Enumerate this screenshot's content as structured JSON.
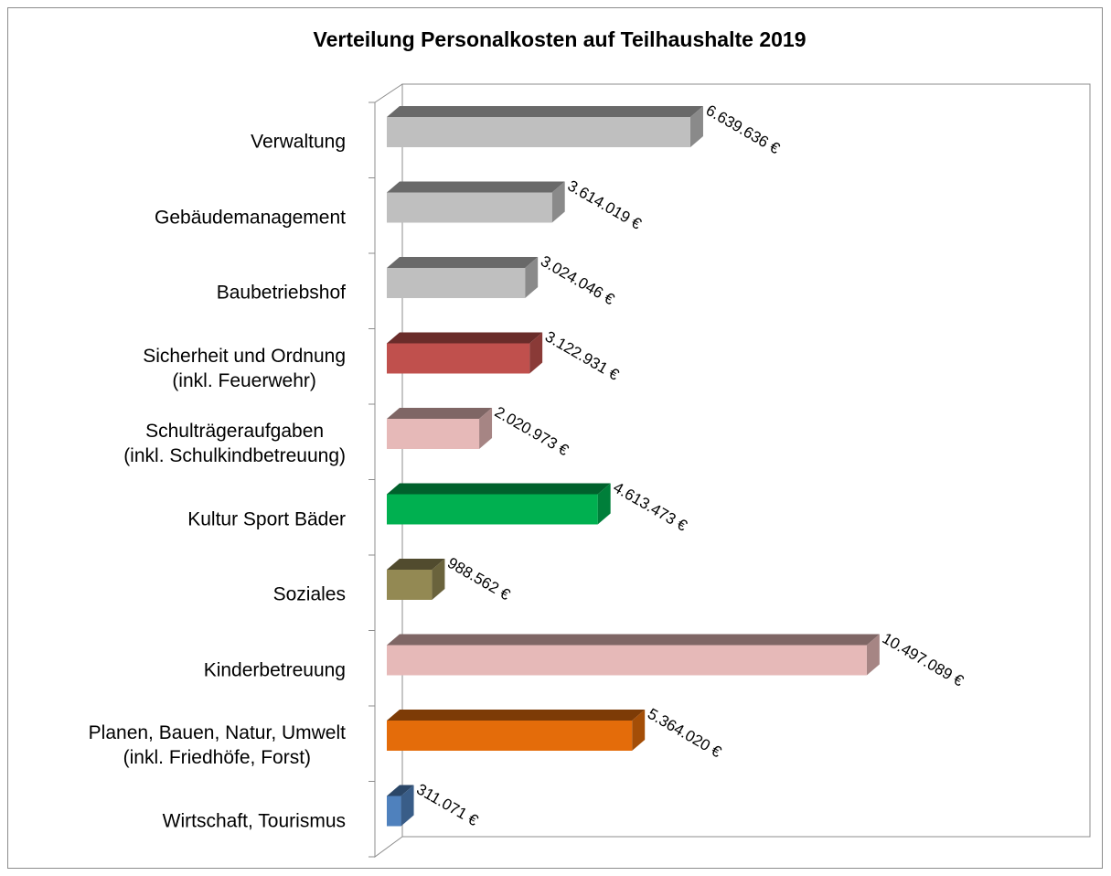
{
  "chart_data": {
    "type": "bar3d_horizontal",
    "title": "Verteilung Personalkosten auf Teilhaushalte  2019",
    "categories": [
      "Verwaltung",
      "Gebäudemanagement",
      "Baubetriebshof",
      "Sicherheit und Ordnung\n(inkl. Feuerwehr)",
      "Schulträgeraufgaben\n(inkl. Schulkindbetreuung)",
      "Kultur Sport Bäder",
      "Soziales",
      "Kinderbetreuung",
      "Planen, Bauen, Natur, Umwelt\n(inkl. Friedhöfe, Forst)",
      "Wirtschaft, Tourismus"
    ],
    "values": [
      6639636,
      3614019,
      3024046,
      3122931,
      2020973,
      4613473,
      988562,
      10497089,
      5364020,
      311071
    ],
    "value_labels": [
      "6.639.636 €",
      "3.614.019 €",
      "3.024.046 €",
      "3.122.931 €",
      "2.020.973 €",
      "4.613.473 €",
      "988.562 €",
      "10.497.089 €",
      "5.364.020 €",
      "311.071 €"
    ],
    "colors": [
      "#bfbfbf",
      "#bfbfbf",
      "#bfbfbf",
      "#c0504d",
      "#e6b9b8",
      "#00b050",
      "#938953",
      "#e6b9b8",
      "#e46c0a",
      "#4f81bd"
    ],
    "xlim": [
      0,
      12000000
    ]
  }
}
